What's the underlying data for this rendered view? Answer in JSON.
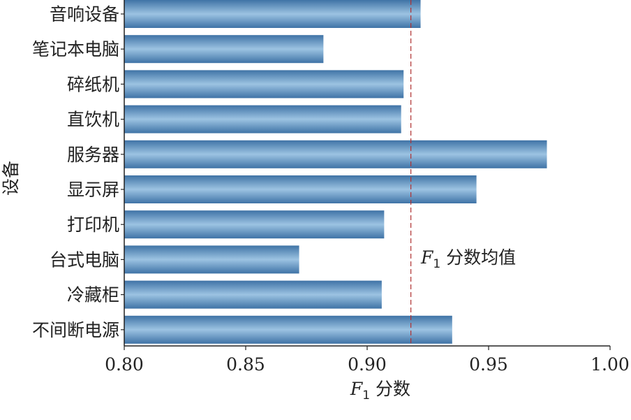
{
  "chart_data": {
    "type": "bar",
    "orientation": "horizontal",
    "categories": [
      "音响设备",
      "笔记本电脑",
      "碎纸机",
      "直饮机",
      "服务器",
      "显示屏",
      "打印机",
      "台式电脑",
      "冷藏柜",
      "不间断电源"
    ],
    "values": [
      0.922,
      0.882,
      0.915,
      0.914,
      0.974,
      0.945,
      0.907,
      0.872,
      0.906,
      0.935
    ],
    "xlim": [
      0.8,
      1.0
    ],
    "xticks": [
      "0.80",
      "0.85",
      "0.90",
      "0.95",
      "1.00"
    ],
    "xlabel": {
      "var": "F",
      "sub": "1",
      "text": " 分数"
    },
    "ylabel": "设备",
    "mean_line": {
      "value": 0.918,
      "label_var": "F",
      "label_sub": "1",
      "label_text": " 分数均值",
      "color": "#b03030"
    },
    "bar_color_dark": "#3f73a6",
    "bar_color_light": "#9cc3e2",
    "grid": false,
    "legend": "none"
  }
}
